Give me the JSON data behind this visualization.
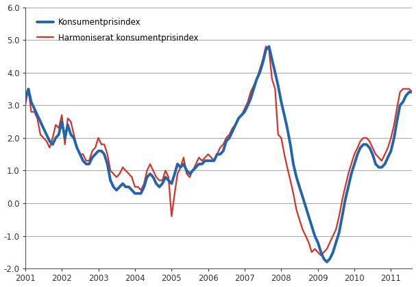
{
  "kpi_label": "Konsumentprisindex",
  "hicp_label": "Harmoniserat konsumentprisindex",
  "kpi_color": "#2166ac",
  "hicp_color": "#d73027",
  "ylim": [
    -2.0,
    6.0
  ],
  "yticks": [
    -2.0,
    -1.0,
    0.0,
    1.0,
    2.0,
    3.0,
    4.0,
    5.0,
    6.0
  ],
  "background_color": "#ffffff",
  "grid_color": "#aaaaaa",
  "kpi_linewidth": 2.8,
  "hicp_linewidth": 1.6,
  "kpi": [
    3.2,
    3.5,
    3.1,
    2.9,
    2.7,
    2.5,
    2.3,
    2.1,
    1.9,
    1.8,
    2.0,
    2.1,
    2.5,
    2.0,
    2.4,
    2.1,
    2.0,
    1.7,
    1.5,
    1.3,
    1.2,
    1.2,
    1.4,
    1.5,
    1.6,
    1.6,
    1.5,
    1.2,
    0.7,
    0.5,
    0.4,
    0.5,
    0.6,
    0.5,
    0.5,
    0.4,
    0.3,
    0.3,
    0.3,
    0.5,
    0.8,
    0.9,
    0.8,
    0.6,
    0.5,
    0.6,
    0.8,
    0.7,
    0.6,
    0.9,
    1.2,
    1.1,
    1.2,
    1.0,
    0.9,
    1.0,
    1.1,
    1.2,
    1.2,
    1.3,
    1.3,
    1.3,
    1.3,
    1.5,
    1.5,
    1.6,
    1.9,
    2.0,
    2.2,
    2.4,
    2.6,
    2.7,
    2.8,
    3.0,
    3.2,
    3.5,
    3.8,
    4.0,
    4.3,
    4.7,
    4.8,
    4.4,
    4.0,
    3.6,
    3.1,
    2.7,
    2.3,
    1.8,
    1.2,
    0.8,
    0.5,
    0.2,
    -0.1,
    -0.4,
    -0.7,
    -1.0,
    -1.2,
    -1.5,
    -1.7,
    -1.8,
    -1.7,
    -1.5,
    -1.2,
    -0.9,
    -0.4,
    0.1,
    0.5,
    0.9,
    1.2,
    1.5,
    1.7,
    1.8,
    1.8,
    1.7,
    1.5,
    1.2,
    1.1,
    1.1,
    1.2,
    1.4,
    1.6,
    2.0,
    2.5,
    3.0,
    3.1,
    3.3,
    3.4,
    3.4
  ],
  "hicp": [
    3.0,
    3.5,
    2.8,
    2.8,
    2.6,
    2.1,
    2.0,
    1.9,
    1.7,
    2.0,
    2.4,
    2.3,
    2.7,
    1.8,
    2.6,
    2.5,
    2.1,
    1.7,
    1.5,
    1.5,
    1.3,
    1.3,
    1.6,
    1.7,
    2.0,
    1.8,
    1.8,
    1.5,
    1.0,
    0.9,
    0.8,
    0.9,
    1.1,
    1.0,
    0.9,
    0.8,
    0.5,
    0.5,
    0.4,
    0.6,
    1.0,
    1.2,
    1.0,
    0.8,
    0.7,
    0.7,
    1.0,
    0.8,
    -0.4,
    0.3,
    0.9,
    1.1,
    1.4,
    0.9,
    0.8,
    1.0,
    1.2,
    1.4,
    1.3,
    1.4,
    1.5,
    1.4,
    1.3,
    1.5,
    1.7,
    1.8,
    2.0,
    2.1,
    2.3,
    2.4,
    2.6,
    2.7,
    2.9,
    3.1,
    3.4,
    3.6,
    3.8,
    4.1,
    4.4,
    4.8,
    4.7,
    3.8,
    3.5,
    2.1,
    2.0,
    1.5,
    1.1,
    0.7,
    0.3,
    -0.2,
    -0.5,
    -0.8,
    -1.0,
    -1.2,
    -1.5,
    -1.4,
    -1.5,
    -1.6,
    -1.5,
    -1.4,
    -1.2,
    -1.0,
    -0.8,
    -0.4,
    0.1,
    0.5,
    0.9,
    1.2,
    1.5,
    1.7,
    1.9,
    2.0,
    2.0,
    1.9,
    1.7,
    1.5,
    1.4,
    1.3,
    1.5,
    1.7,
    2.0,
    2.4,
    2.9,
    3.4,
    3.5,
    3.5,
    3.5,
    3.4
  ]
}
